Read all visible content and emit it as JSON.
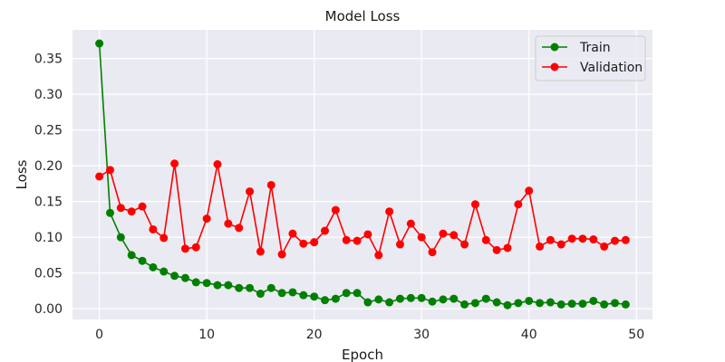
{
  "chart_data": {
    "type": "line",
    "title": "Model Loss",
    "xlabel": "Epoch",
    "ylabel": "Loss",
    "xlim": [
      -2.5,
      51.5
    ],
    "ylim": [
      -0.015,
      0.39
    ],
    "xticks": [
      0,
      10,
      20,
      30,
      40,
      50
    ],
    "yticks": [
      0.0,
      0.05,
      0.1,
      0.15,
      0.2,
      0.25,
      0.3,
      0.35
    ],
    "grid": true,
    "legend": "top-right",
    "x": [
      0,
      1,
      2,
      3,
      4,
      5,
      6,
      7,
      8,
      9,
      10,
      11,
      12,
      13,
      14,
      15,
      16,
      17,
      18,
      19,
      20,
      21,
      22,
      23,
      24,
      25,
      26,
      27,
      28,
      29,
      30,
      31,
      32,
      33,
      34,
      35,
      36,
      37,
      38,
      39,
      40,
      41,
      42,
      43,
      44,
      45,
      46,
      47,
      48,
      49
    ],
    "series": [
      {
        "name": "Train",
        "color": "#008000",
        "values": [
          0.371,
          0.134,
          0.1,
          0.075,
          0.067,
          0.058,
          0.052,
          0.046,
          0.043,
          0.037,
          0.036,
          0.033,
          0.033,
          0.029,
          0.029,
          0.021,
          0.029,
          0.022,
          0.023,
          0.019,
          0.017,
          0.012,
          0.014,
          0.022,
          0.022,
          0.009,
          0.013,
          0.009,
          0.014,
          0.015,
          0.015,
          0.01,
          0.013,
          0.014,
          0.006,
          0.008,
          0.014,
          0.009,
          0.005,
          0.008,
          0.011,
          0.008,
          0.009,
          0.006,
          0.007,
          0.007,
          0.011,
          0.006,
          0.008,
          0.006
        ]
      },
      {
        "name": "Validation",
        "color": "#ff0000",
        "values": [
          0.185,
          0.194,
          0.141,
          0.136,
          0.143,
          0.111,
          0.099,
          0.203,
          0.084,
          0.086,
          0.126,
          0.202,
          0.119,
          0.113,
          0.164,
          0.08,
          0.173,
          0.076,
          0.105,
          0.091,
          0.093,
          0.109,
          0.138,
          0.096,
          0.095,
          0.104,
          0.075,
          0.136,
          0.09,
          0.119,
          0.1,
          0.079,
          0.105,
          0.103,
          0.09,
          0.146,
          0.096,
          0.082,
          0.085,
          0.146,
          0.165,
          0.087,
          0.096,
          0.09,
          0.098,
          0.098,
          0.097,
          0.087,
          0.095,
          0.096
        ]
      }
    ]
  }
}
